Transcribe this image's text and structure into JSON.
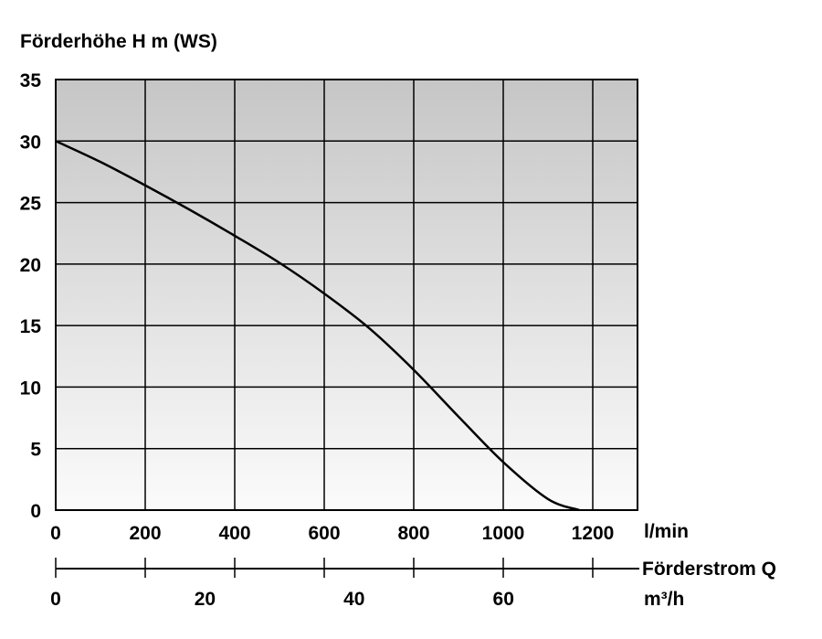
{
  "chart_data": {
    "type": "line",
    "ylabel": "Förderhöhe H m (WS)",
    "xlabel": "Förderstrom Q",
    "x_unit_top": "l/min",
    "x_unit_bottom": "m³/h",
    "y_ticks": [
      "0",
      "5",
      "10",
      "15",
      "20",
      "25",
      "30",
      "35"
    ],
    "ylim": [
      0,
      35
    ],
    "x_ticks_lmin": [
      "0",
      "200",
      "400",
      "600",
      "800",
      "1000",
      "1200"
    ],
    "x_ticks_m3h": [
      "0",
      "20",
      "40",
      "60"
    ],
    "x_gridlines_lmin": [
      0,
      200,
      400,
      600,
      800,
      1000,
      1200
    ],
    "grid": true,
    "series": [
      {
        "x": [
          0,
          100,
          200,
          300,
          400,
          500,
          600,
          700,
          800,
          900,
          1000,
          1100,
          1170
        ],
        "y": [
          30,
          28.3,
          26.4,
          24.4,
          22.3,
          20.1,
          17.6,
          14.8,
          11.4,
          7.6,
          3.9,
          0.9,
          0
        ]
      }
    ]
  }
}
